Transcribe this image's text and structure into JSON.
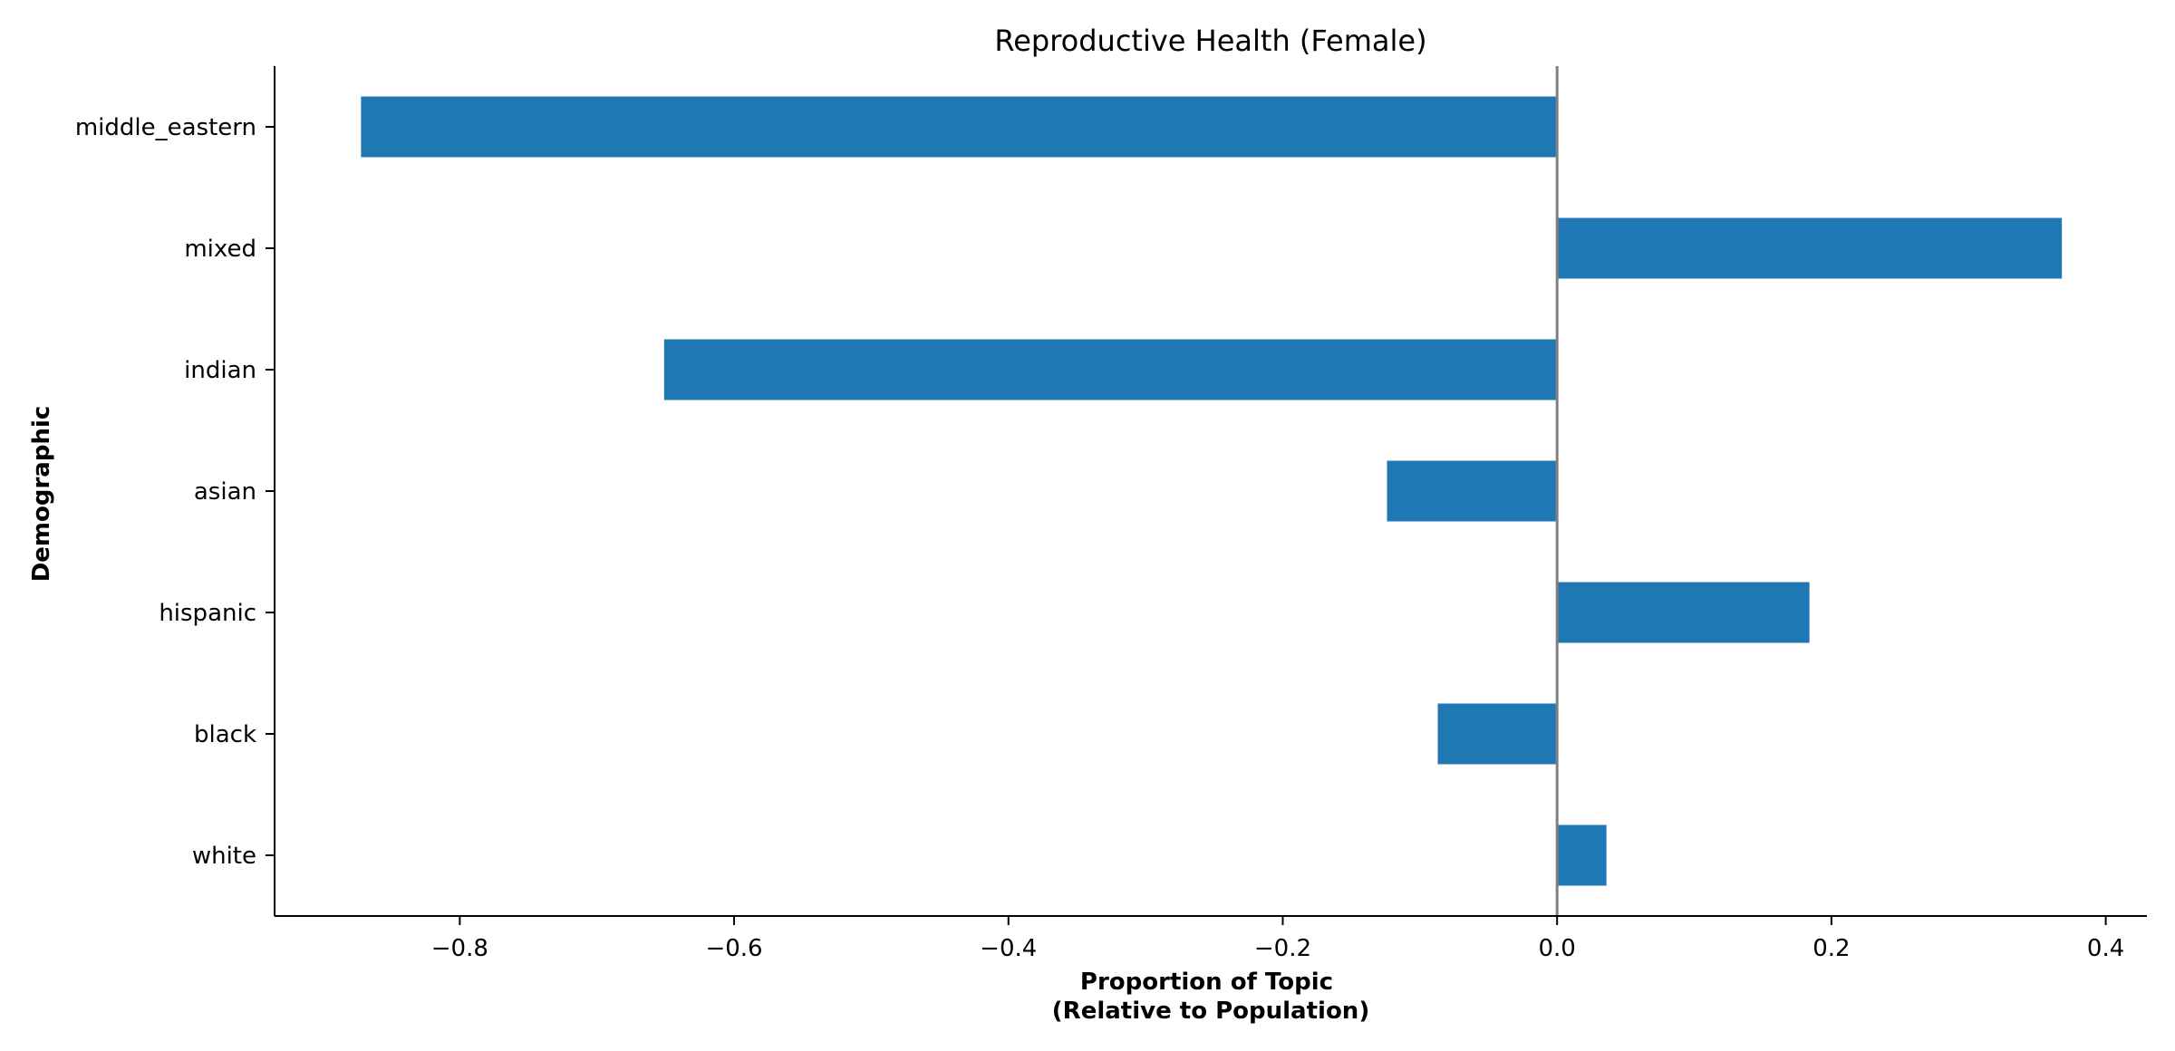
{
  "chart_data": {
    "type": "bar",
    "orientation": "horizontal",
    "title": "Reproductive Health (Female)",
    "xlabel_lines": [
      "Proportion of Topic",
      "(Relative to Population)"
    ],
    "ylabel": "Demographic",
    "categories": [
      "middle_eastern",
      "mixed",
      "indian",
      "asian",
      "hispanic",
      "black",
      "white"
    ],
    "values": [
      -0.872,
      0.368,
      -0.651,
      -0.124,
      0.184,
      -0.087,
      0.036
    ],
    "xlim": [
      -0.935,
      0.43
    ],
    "xticks": [
      -0.8,
      -0.6,
      -0.4,
      -0.2,
      0.0,
      0.2,
      0.4
    ],
    "xtick_labels": [
      "−0.8",
      "−0.6",
      "−0.4",
      "−0.2",
      "0.0",
      "0.2",
      "0.4"
    ],
    "bar_color": "#1f77b4",
    "zero_line_color": "#808080",
    "grid": false,
    "legend": "none"
  }
}
